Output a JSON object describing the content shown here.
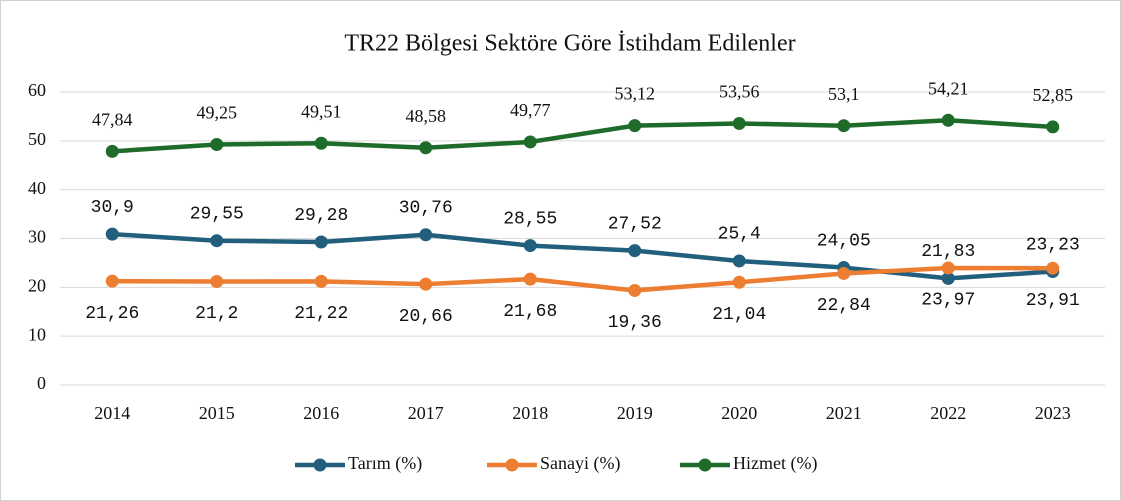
{
  "chart_data": {
    "type": "line",
    "title": "TR22 Bölgesi Sektöre Göre İstihdam Edilenler",
    "categories": [
      "2014",
      "2015",
      "2016",
      "2017",
      "2018",
      "2019",
      "2020",
      "2021",
      "2022",
      "2023"
    ],
    "series": [
      {
        "name": "Tarım (%)",
        "color": "#215f7d",
        "values": [
          30.9,
          29.55,
          29.28,
          30.76,
          28.55,
          27.52,
          25.4,
          24.05,
          21.83,
          23.23
        ],
        "value_labels": [
          "30,9",
          "29,55",
          "29,28",
          "30,76",
          "28,55",
          "27,52",
          "25,4",
          "24,05",
          "21,83",
          "23,23"
        ]
      },
      {
        "name": "Sanayi (%)",
        "color": "#ed7d31",
        "values": [
          21.26,
          21.2,
          21.22,
          20.66,
          21.68,
          19.36,
          21.04,
          22.84,
          23.97,
          23.91
        ],
        "value_labels": [
          "21,26",
          "21,2",
          "21,22",
          "20,66",
          "21,68",
          "19,36",
          "21,04",
          "22,84",
          "23,97",
          "23,91"
        ]
      },
      {
        "name": "Hizmet (%)",
        "color": "#1e6b2a",
        "values": [
          47.84,
          49.25,
          49.51,
          48.58,
          49.77,
          53.12,
          53.56,
          53.1,
          54.21,
          52.85
        ],
        "value_labels": [
          "47,84",
          "49,25",
          "49,51",
          "48,58",
          "49,77",
          "53,12",
          "53,56",
          "53,1",
          "54,21",
          "52,85"
        ]
      }
    ],
    "ylim": [
      0,
      60
    ],
    "yticks": [
      0,
      10,
      20,
      30,
      40,
      50,
      60
    ],
    "grid": true,
    "legend": "bottom"
  }
}
